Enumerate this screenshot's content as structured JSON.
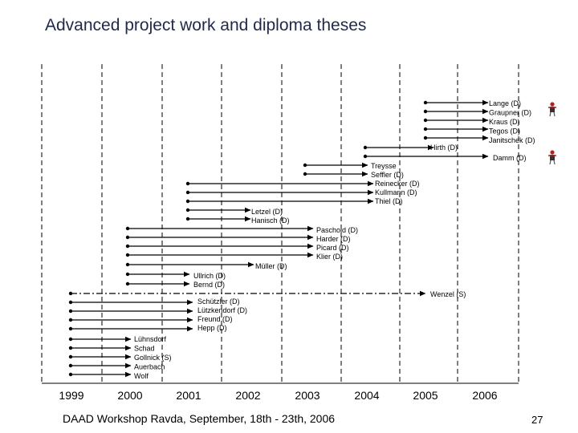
{
  "title": "Advanced project work and diploma theses",
  "footer": "DAAD Workshop Ravda, September, 18th - 23th, 2006",
  "page_number": "27",
  "chart_data": {
    "type": "timeline",
    "years": [
      "1999",
      "2000",
      "2001",
      "2002",
      "2003",
      "2004",
      "2005",
      "2006"
    ],
    "label_groups": [
      {
        "names": [
          "Lange (D)",
          "Graupner (D)",
          "Kraus (D)",
          "Tegos (D)",
          "Janitschek (D)"
        ]
      },
      {
        "names": [
          "Hirth (D)"
        ]
      },
      {
        "names": [
          "Damm (D)"
        ]
      },
      {
        "names": [
          "Treysse",
          "Seffler (D)",
          "Reinecker (D)",
          "Kullmann (D)",
          "Thiel (D)"
        ]
      },
      {
        "names": [
          "Letzel (D)",
          "Hanisch (D)"
        ]
      },
      {
        "names": [
          "Paschold (D)",
          "Harder (D)",
          "Picard (D)",
          "Klier (D)"
        ]
      },
      {
        "names": [
          "Müller (D)"
        ]
      },
      {
        "names": [
          "Ullrich (D)",
          "Bernd (D)"
        ]
      },
      {
        "names": [
          "Wenzel (S)"
        ]
      },
      {
        "names": [
          "Schützler (D)",
          "Lützkendorf (D)",
          "Freund (D)",
          "Hepp (D)"
        ]
      },
      {
        "names": [
          "Lühnsdorf",
          "Schad",
          "Gollnick (S)",
          "Auerbach",
          "Wolf"
        ]
      }
    ],
    "icon_colors": {
      "figure": "#b22222"
    }
  }
}
